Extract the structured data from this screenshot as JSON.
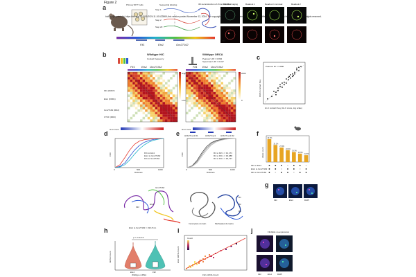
{
  "figure_title": "Figure 2",
  "panel_labels": [
    "a",
    "b",
    "c",
    "d",
    "e",
    "f",
    "g",
    "h",
    "i",
    "j"
  ],
  "panel_a": {
    "headers": [
      "Primary DP T cells",
      "Sequential labeling",
      "3D reconstruction of chromatin fiber",
      "Tubulin imaging",
      "Readout 1",
      "Readout 1 removal",
      "Readout 2"
    ],
    "steps": [
      "Step 1",
      "Step 2",
      "Step 20",
      "Step 30"
    ],
    "gene_labels": [
      "Fli1",
      "Ets1",
      "Gm27162"
    ],
    "watermark_text": "bioRxiv preprint doi: https://doi.org/10.1101/2024.11.10.622869; this version posted November 12, 2024. The copyright holder for this preprint (which was not certified by peer review) is the author/funder. All rights reserved.",
    "micro_channel": "568"
  },
  "panel_b": {
    "left_title": "Wildtype HiC",
    "left_subtitle": "Contact frequency",
    "right_title": "Wildtype ORCA",
    "pearson": "Pearson's R² = 0.802",
    "spearman": "Spearman's R² = 0.917",
    "genes": [
      "Fli1",
      "Ets1",
      "Gm27162"
    ],
    "side_labels": [
      "Fli1 (FRD7)",
      "Ets1 (FRD1)",
      "Gm27162 (RD2)",
      "CTCF (RD3)"
    ],
    "colorbar_left": [
      "Low",
      "High"
    ],
    "colorbar_right": [
      "0",
      "2000"
    ]
  },
  "panel_c": {
    "annotation": "Pearson R² = 0.808",
    "ylabel": "ORCA contact freq.",
    "xlabel": "Hi-C contact freq. (Hi-C score, log scale)"
  },
  "panel_d": {
    "bar_label": "Hi-C Conf.",
    "ylabel": "CDF",
    "xlabel": "Distance",
    "xticks": [
      "0",
      "500",
      "1000"
    ],
    "legend": [
      "Fli1 to Ets1",
      "Ets1 to Gm27162",
      "Fli1 to Gm27162"
    ],
    "sub_label": "Ets1 to Gm27162 = 193.8 nm",
    "structure_labels": [
      "Gm27162",
      "Fli1",
      "Ets1"
    ]
  },
  "panel_e": {
    "bar_label": "Hi-C Conf.",
    "ylabel": "CDF",
    "xlabel": "Distance",
    "xticks": [
      "0",
      "500",
      "1000"
    ],
    "track_labels": [
      "H3K27me3 R1",
      "H3K27me3",
      "H3K27me3 R2"
    ],
    "legend": [
      "R1 to R2 n = 31,171",
      "R1 to R3 n = 30,988",
      "R1 to R4 n = 30,727"
    ],
    "structure_labels": [
      "Incomplete domain",
      "Methylated domains",
      "R1",
      "R2",
      "R3"
    ]
  },
  "panel_f": {
    "ylabel": "Allele count",
    "row_labels": [
      "Fli1 to Ets1",
      "Ets1 to Gm27162",
      "Fli1 to Gm27162"
    ]
  },
  "panel_g": {
    "labels": [
      "Fli1",
      "Ets1",
      "DAPI"
    ]
  },
  "panel_h": {
    "pvalue": "p = 2.2e-16",
    "ylabel": "mRNA Count",
    "xlabel": "Wildtype mRNA",
    "categories": [
      "Ets1",
      "Fli1"
    ]
  },
  "panel_i": {
    "ylabel": "Ets1 mRNA Count",
    "xlabel": "Fli1 mRNA Count",
    "legend_title": "Count"
  },
  "panel_j": {
    "title": "Fli1/Ets1 co-expression",
    "labels": [
      "Fli1",
      "Ets1",
      "DAPI"
    ]
  },
  "chart_data": [
    {
      "type": "bar",
      "panel": "f",
      "categories": [
        "1",
        "2",
        "3",
        "4",
        "5",
        "6",
        "7"
      ],
      "values": [
        0.87,
        0.65,
        0.55,
        0.45,
        0.38,
        0.32,
        0.26
      ],
      "data_labels": [
        "42.3%",
        "33.1%",
        "27.6%",
        "22.4%",
        "19.3%",
        "16.6%",
        "12.9%"
      ],
      "ylim": [
        0,
        1
      ]
    },
    {
      "type": "line",
      "panel": "d",
      "x": [
        0,
        100,
        200,
        300,
        400,
        500,
        600,
        700,
        800,
        900,
        1000
      ],
      "series": [
        {
          "name": "Fli1 to Ets1",
          "values": [
            0,
            0.04,
            0.16,
            0.38,
            0.6,
            0.76,
            0.87,
            0.93,
            0.97,
            0.99,
            1.0
          ]
        },
        {
          "name": "Ets1 to Gm27162",
          "values": [
            0,
            0.1,
            0.34,
            0.6,
            0.8,
            0.91,
            0.96,
            0.98,
            0.99,
            1.0,
            1.0
          ]
        },
        {
          "name": "Fli1 to Gm27162",
          "values": [
            0,
            0.02,
            0.1,
            0.26,
            0.46,
            0.64,
            0.78,
            0.88,
            0.94,
            0.98,
            1.0
          ]
        }
      ],
      "ylim": [
        0,
        1
      ],
      "xlim": [
        0,
        1000
      ]
    },
    {
      "type": "line",
      "panel": "e",
      "x": [
        0,
        100,
        200,
        300,
        400,
        500,
        600,
        700,
        800,
        900,
        1000
      ],
      "series": [
        {
          "name": "R1 to R2 n = 31,171",
          "values": [
            0,
            0.06,
            0.24,
            0.5,
            0.72,
            0.86,
            0.93,
            0.97,
            0.99,
            1.0,
            1.0
          ]
        },
        {
          "name": "R1 to R3 n = 30,988",
          "values": [
            0,
            0.05,
            0.2,
            0.44,
            0.66,
            0.82,
            0.91,
            0.96,
            0.98,
            1.0,
            1.0
          ]
        },
        {
          "name": "R1 to R4 n = 30,727",
          "values": [
            0,
            0.04,
            0.16,
            0.38,
            0.6,
            0.78,
            0.88,
            0.94,
            0.98,
            0.99,
            1.0
          ]
        }
      ],
      "ylim": [
        0,
        1
      ],
      "xlim": [
        0,
        1000
      ]
    },
    {
      "type": "scatter",
      "panel": "c",
      "x": [
        0.1,
        0.2,
        0.3,
        0.35,
        0.4,
        0.45,
        0.5,
        0.55,
        0.6,
        0.62,
        0.65,
        0.7,
        0.72,
        0.75,
        0.8,
        0.85,
        0.9,
        0.3,
        0.5,
        0.6,
        0.4,
        0.7,
        0.8,
        0.25,
        0.55,
        0.45,
        0.65,
        0.75,
        0.35,
        0.85
      ],
      "y": [
        0.12,
        0.18,
        0.28,
        0.38,
        0.42,
        0.4,
        0.52,
        0.5,
        0.58,
        0.66,
        0.62,
        0.72,
        0.68,
        0.76,
        0.82,
        0.8,
        0.9,
        0.22,
        0.46,
        0.64,
        0.46,
        0.66,
        0.86,
        0.3,
        0.6,
        0.5,
        0.7,
        0.72,
        0.32,
        0.88
      ],
      "xlim": [
        0,
        1
      ],
      "ylim": [
        0,
        1
      ]
    },
    {
      "type": "scatter",
      "panel": "i",
      "x": [
        2,
        4,
        5,
        6,
        8,
        10,
        12,
        14,
        15,
        18,
        20,
        22,
        25,
        28,
        30,
        35,
        40,
        45,
        50,
        8,
        10,
        12,
        16,
        20,
        24,
        6,
        9,
        14,
        18,
        26
      ],
      "y": [
        1,
        2,
        3,
        2,
        4,
        5,
        4,
        6,
        7,
        6,
        8,
        9,
        10,
        9,
        12,
        14,
        15,
        17,
        19,
        3,
        6,
        5,
        7,
        10,
        11,
        2,
        4,
        5,
        8,
        10
      ],
      "xlim": [
        0,
        60
      ],
      "ylim": [
        0,
        25
      ]
    }
  ]
}
